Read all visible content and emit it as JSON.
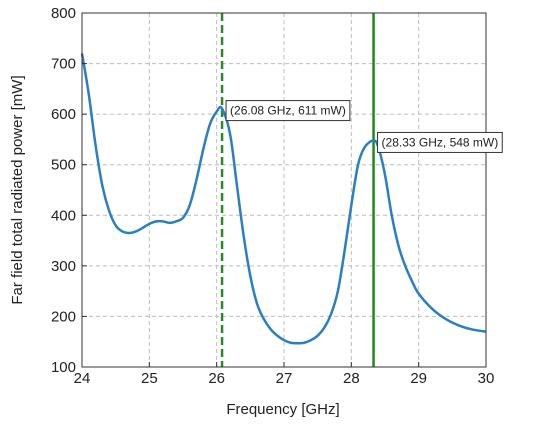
{
  "chart_data": {
    "type": "line",
    "xlabel": "Frequency [GHz]",
    "ylabel": "Far field total radiated power [mW]",
    "xlim": [
      24,
      30
    ],
    "ylim": [
      100,
      800
    ],
    "xticks": [
      24,
      25,
      26,
      27,
      28,
      29,
      30
    ],
    "yticks": [
      100,
      200,
      300,
      400,
      500,
      600,
      700,
      800
    ],
    "xtick_labels": [
      "24",
      "25",
      "26",
      "27",
      "28",
      "29",
      "30"
    ],
    "ytick_labels": [
      "100",
      "200",
      "300",
      "400",
      "500",
      "600",
      "700",
      "800"
    ],
    "grid": true,
    "series": [
      {
        "color": "#2a7fc4",
        "x": [
          24.0,
          24.1,
          24.2,
          24.3,
          24.4,
          24.5,
          24.6,
          24.7,
          24.8,
          24.9,
          25.0,
          25.1,
          25.2,
          25.3,
          25.4,
          25.5,
          25.6,
          25.7,
          25.8,
          25.9,
          26.0,
          26.08,
          26.2,
          26.3,
          26.4,
          26.5,
          26.6,
          26.7,
          26.8,
          26.9,
          27.0,
          27.1,
          27.2,
          27.3,
          27.4,
          27.5,
          27.6,
          27.7,
          27.8,
          27.9,
          28.0,
          28.1,
          28.2,
          28.33,
          28.4,
          28.5,
          28.6,
          28.7,
          28.8,
          28.9,
          29.0,
          29.2,
          29.4,
          29.6,
          29.8,
          30.0
        ],
        "y": [
          720,
          640,
          540,
          460,
          410,
          380,
          368,
          365,
          368,
          375,
          383,
          388,
          388,
          385,
          388,
          395,
          420,
          470,
          530,
          580,
          605,
          611,
          560,
          460,
          360,
          280,
          225,
          195,
          175,
          162,
          153,
          148,
          147,
          148,
          153,
          162,
          178,
          205,
          250,
          330,
          420,
          500,
          535,
          548,
          535,
          480,
          400,
          340,
          300,
          270,
          245,
          215,
          195,
          182,
          174,
          170
        ]
      }
    ],
    "vlines": [
      {
        "x": 26.08,
        "color": "#2a8a2a",
        "style": "dashed"
      },
      {
        "x": 28.33,
        "color": "#1e8a1e",
        "style": "solid"
      }
    ],
    "annotations": [
      {
        "text": "(26.08 GHz, 611 mW)",
        "x": 26.08,
        "y": 611
      },
      {
        "text": "(28.33 GHz, 548 mW)",
        "x": 28.33,
        "y": 548
      }
    ]
  }
}
